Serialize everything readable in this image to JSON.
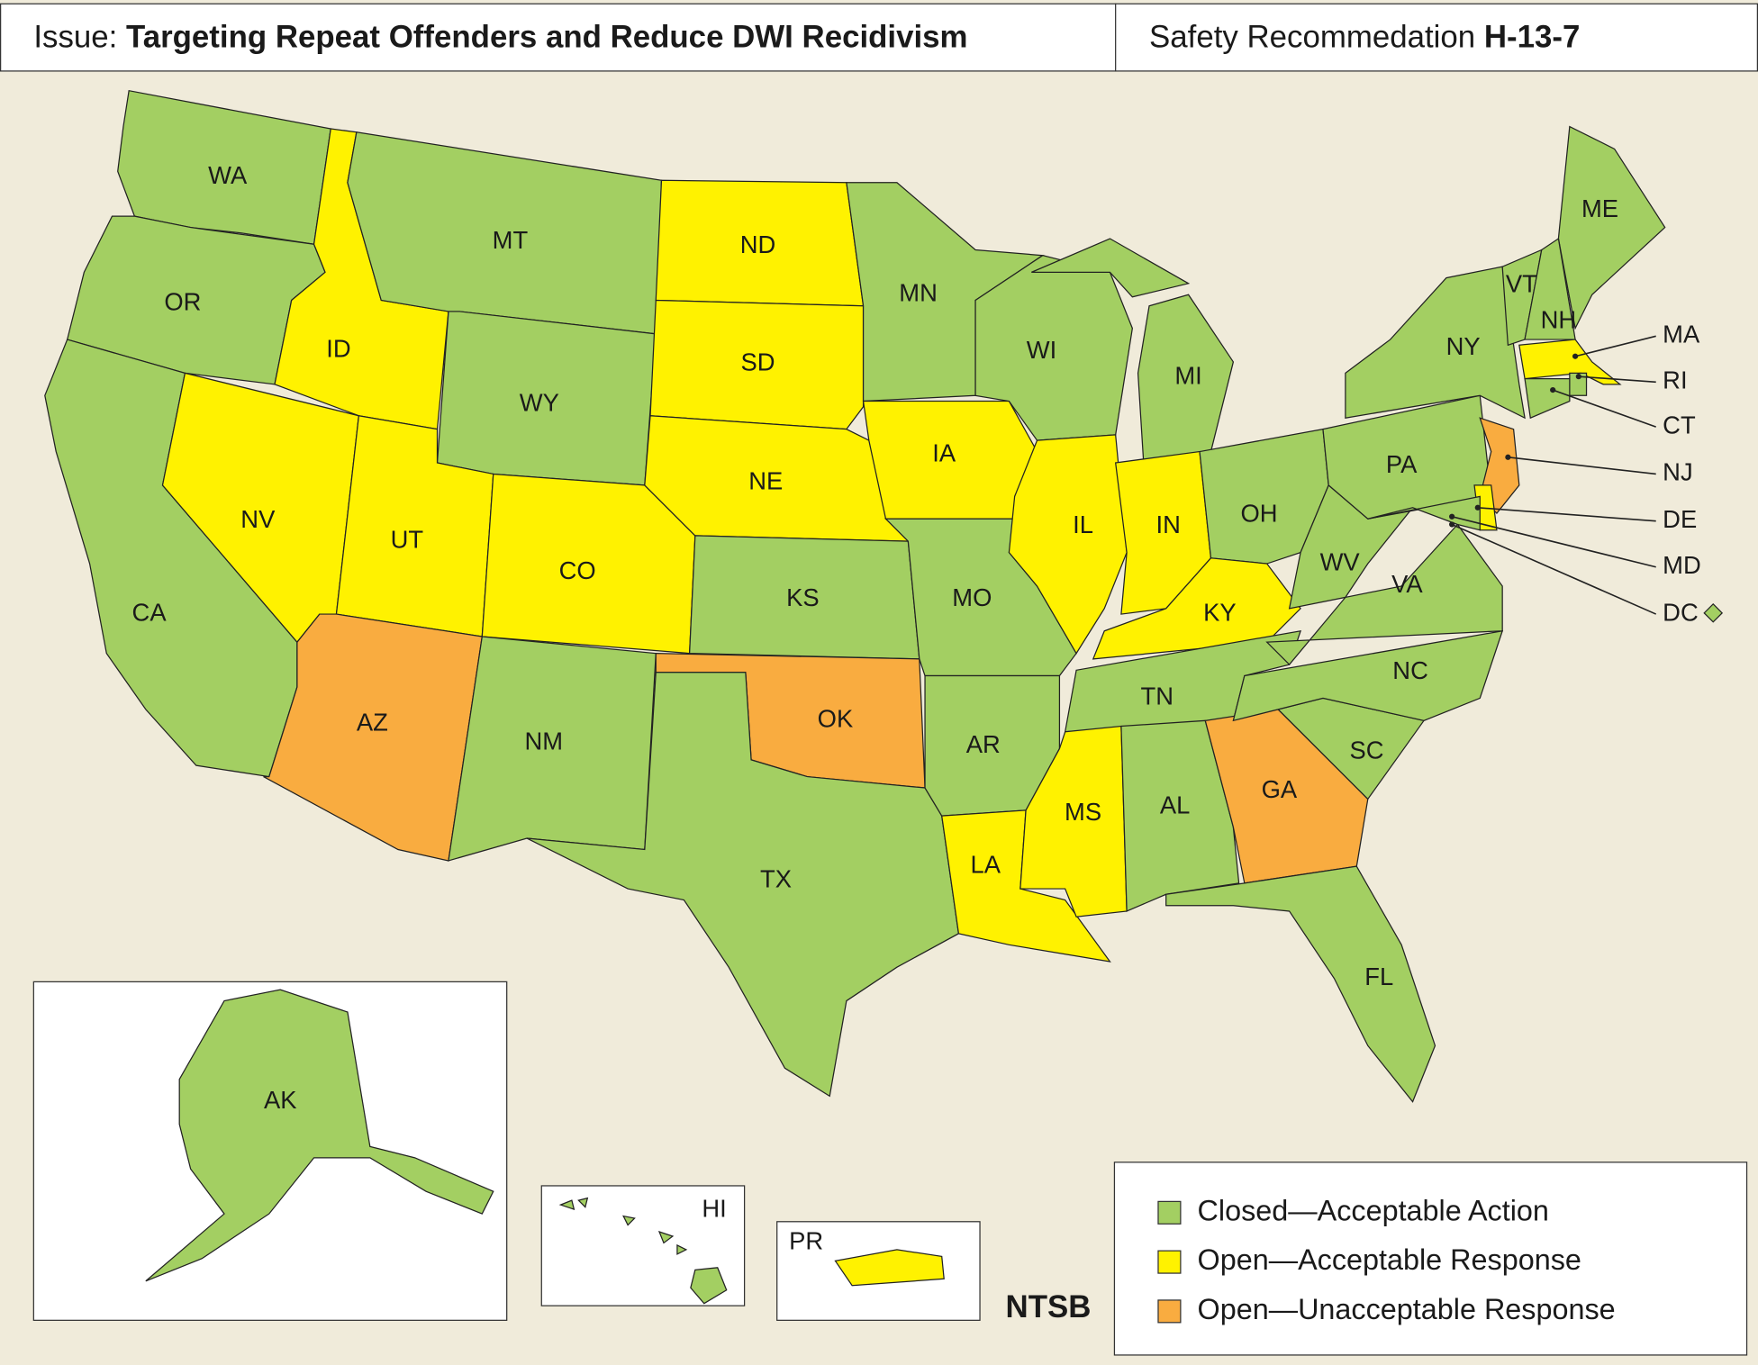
{
  "header": {
    "issue_prefix": "Issue:",
    "issue": "Targeting Repeat Offenders and Reduce DWI Recidivism",
    "rec_prefix": "Safety Recommedation",
    "rec_id": "H-13-7"
  },
  "legend": [
    {
      "label": "Closed—Acceptable Action",
      "color": "#a3cf62"
    },
    {
      "label": "Open—Acceptable Response",
      "color": "#fff200"
    },
    {
      "label": "Open—Unacceptable Response",
      "color": "#f9ac40"
    }
  ],
  "states": [
    {
      "label": "WA",
      "status": 0
    },
    {
      "label": "OR",
      "status": 0
    },
    {
      "label": "CA",
      "status": 0
    },
    {
      "label": "NV",
      "status": 1
    },
    {
      "label": "ID",
      "status": 1
    },
    {
      "label": "MT",
      "status": 0
    },
    {
      "label": "WY",
      "status": 0
    },
    {
      "label": "UT",
      "status": 1
    },
    {
      "label": "CO",
      "status": 1
    },
    {
      "label": "AZ",
      "status": 2
    },
    {
      "label": "NM",
      "status": 0
    },
    {
      "label": "ND",
      "status": 1
    },
    {
      "label": "SD",
      "status": 1
    },
    {
      "label": "NE",
      "status": 1
    },
    {
      "label": "KS",
      "status": 0
    },
    {
      "label": "OK",
      "status": 2
    },
    {
      "label": "TX",
      "status": 0
    },
    {
      "label": "MN",
      "status": 0
    },
    {
      "label": "IA",
      "status": 1
    },
    {
      "label": "MO",
      "status": 0
    },
    {
      "label": "AR",
      "status": 0
    },
    {
      "label": "LA",
      "status": 1
    },
    {
      "label": "WI",
      "status": 0
    },
    {
      "label": "IL",
      "status": 1
    },
    {
      "label": "MI",
      "status": 0
    },
    {
      "label": "IN",
      "status": 1
    },
    {
      "label": "OH",
      "status": 0
    },
    {
      "label": "KY",
      "status": 1
    },
    {
      "label": "TN",
      "status": 0
    },
    {
      "label": "MS",
      "status": 1
    },
    {
      "label": "AL",
      "status": 0
    },
    {
      "label": "GA",
      "status": 2
    },
    {
      "label": "FL",
      "status": 0
    },
    {
      "label": "SC",
      "status": 0
    },
    {
      "label": "NC",
      "status": 0
    },
    {
      "label": "VA",
      "status": 0
    },
    {
      "label": "WV",
      "status": 0
    },
    {
      "label": "PA",
      "status": 0
    },
    {
      "label": "NY",
      "status": 0
    },
    {
      "label": "ME",
      "status": 0
    },
    {
      "label": "VT",
      "status": 0
    },
    {
      "label": "NH",
      "status": 0
    },
    {
      "label": "MA",
      "status": 1
    },
    {
      "label": "RI",
      "status": 0
    },
    {
      "label": "CT",
      "status": 0
    },
    {
      "label": "NJ",
      "status": 2
    },
    {
      "label": "DE",
      "status": 1
    },
    {
      "label": "MD",
      "status": 0
    },
    {
      "label": "DC",
      "status": 0
    },
    {
      "label": "AK",
      "status": 0
    },
    {
      "label": "HI",
      "status": 0
    },
    {
      "label": "PR",
      "status": 1
    }
  ],
  "source": "NTSB"
}
